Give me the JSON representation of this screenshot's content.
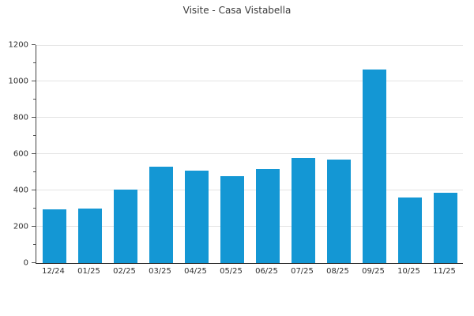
{
  "title": "Visite - Casa Vistabella",
  "chart_data": {
    "type": "bar",
    "title": "Visite - Casa Vistabella",
    "categories": [
      "12/24",
      "01/25",
      "02/25",
      "03/25",
      "04/25",
      "05/25",
      "06/25",
      "07/25",
      "08/25",
      "09/25",
      "10/25",
      "11/25"
    ],
    "values": [
      295,
      300,
      405,
      532,
      510,
      478,
      516,
      578,
      568,
      1066,
      360,
      389
    ],
    "xlabel": "",
    "ylabel": "",
    "ylim": [
      0,
      1200
    ],
    "yticks": [
      0,
      200,
      400,
      600,
      800,
      1000,
      1200
    ],
    "minor_yticks": [
      100,
      300,
      500,
      700,
      900,
      1100
    ],
    "grid": "horizontal-major",
    "legend": "none",
    "colors": {
      "bar": "#1497d4",
      "gridline": "#e4e4e4",
      "axis_spine": "#444444",
      "baseline": "#2b2b2b",
      "tick": "#555555",
      "text": "#2e2e2e",
      "title_text": "#3a3a3a",
      "background": "#ffffff"
    }
  }
}
